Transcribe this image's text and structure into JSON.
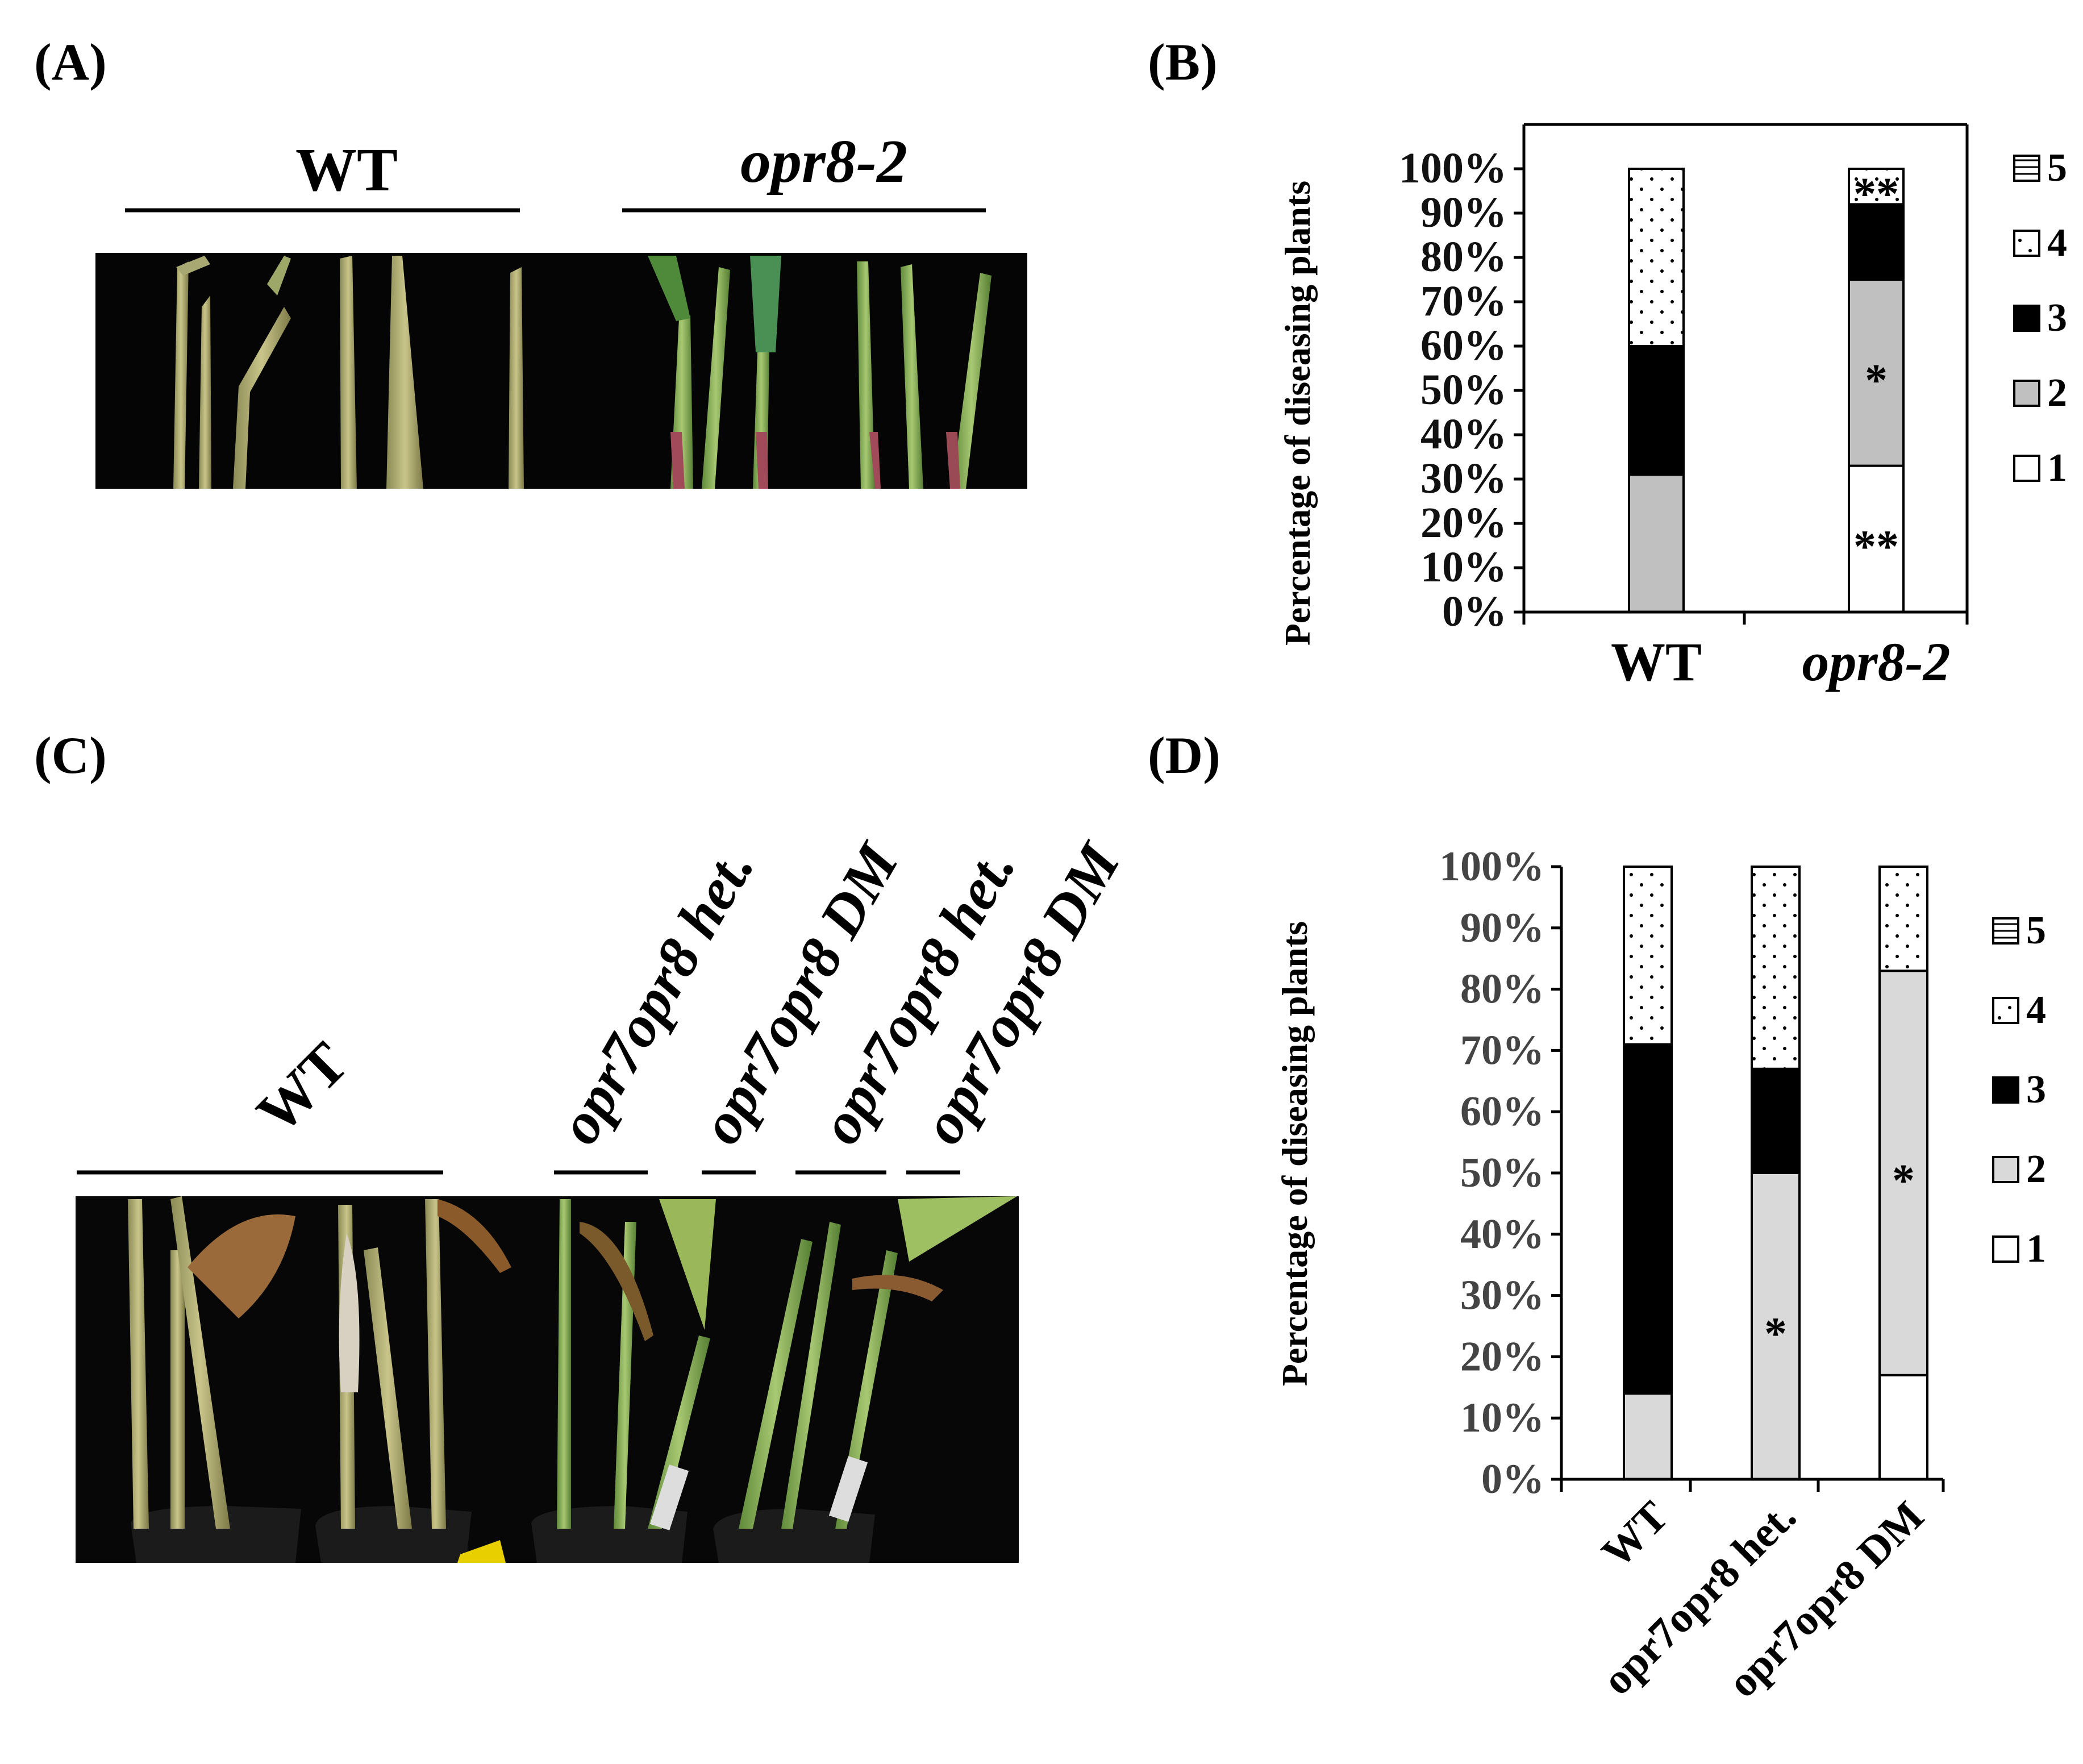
{
  "panels": {
    "A": {
      "label": "(A)",
      "groups": [
        "WT",
        "opr8-2"
      ]
    },
    "B": {
      "label": "(B)"
    },
    "C": {
      "label": "(C)",
      "groups": [
        "WT",
        "opr7opr8 het.",
        "opr7opr8 DM",
        "opr7opr8 het.",
        "opr7opr8 DM"
      ]
    },
    "D": {
      "label": "(D)"
    }
  },
  "chart_data": [
    {
      "type": "bar",
      "stacked": true,
      "panel": "B",
      "ylabel": "Percentage of diseasing plants",
      "xlabel": "",
      "categories": [
        "WT",
        "opr8-2"
      ],
      "ylim": [
        0,
        100
      ],
      "yticks": [
        "0%",
        "10%",
        "20%",
        "30%",
        "40%",
        "50%",
        "60%",
        "70%",
        "80%",
        "90%",
        "100%"
      ],
      "legend_position": "right",
      "series": [
        {
          "name": "1",
          "values": [
            0,
            33
          ],
          "color": "#ffffff",
          "pattern": "none"
        },
        {
          "name": "2",
          "values": [
            31,
            42
          ],
          "color": "#c0c0c0",
          "pattern": "none"
        },
        {
          "name": "3",
          "values": [
            29,
            17
          ],
          "color": "#000000",
          "pattern": "none"
        },
        {
          "name": "4",
          "values": [
            40,
            8
          ],
          "color": "#ffffff",
          "pattern": "dots"
        },
        {
          "name": "5",
          "values": [
            0,
            0
          ],
          "color": "#ffffff",
          "pattern": "hlines"
        }
      ],
      "annotations": [
        {
          "category": "opr8-2",
          "series": "1",
          "text": "**"
        },
        {
          "category": "opr8-2",
          "series": "2",
          "text": "*"
        },
        {
          "category": "opr8-2",
          "series": "4",
          "text": "**"
        }
      ]
    },
    {
      "type": "bar",
      "stacked": true,
      "panel": "D",
      "ylabel": "Percentage of diseasing plants",
      "xlabel": "",
      "categories": [
        "WT",
        "opr7opr8 het.",
        "opr7opr8 DM"
      ],
      "ylim": [
        0,
        100
      ],
      "yticks": [
        "0%",
        "10%",
        "20%",
        "30%",
        "40%",
        "50%",
        "60%",
        "70%",
        "80%",
        "90%",
        "100%"
      ],
      "legend_position": "right",
      "series": [
        {
          "name": "1",
          "values": [
            0,
            0,
            17
          ],
          "color": "#ffffff",
          "pattern": "none"
        },
        {
          "name": "2",
          "values": [
            14,
            50,
            66
          ],
          "color": "#d9d9d9",
          "pattern": "none"
        },
        {
          "name": "3",
          "values": [
            57,
            17,
            0
          ],
          "color": "#000000",
          "pattern": "none"
        },
        {
          "name": "4",
          "values": [
            29,
            33,
            17
          ],
          "color": "#ffffff",
          "pattern": "dots"
        },
        {
          "name": "5",
          "values": [
            0,
            0,
            0
          ],
          "color": "#ffffff",
          "pattern": "hlines"
        }
      ],
      "annotations": [
        {
          "category": "opr7opr8 het.",
          "series": "2",
          "text": "*"
        },
        {
          "category": "opr7opr8 DM",
          "series": "2",
          "text": "*"
        }
      ]
    }
  ]
}
